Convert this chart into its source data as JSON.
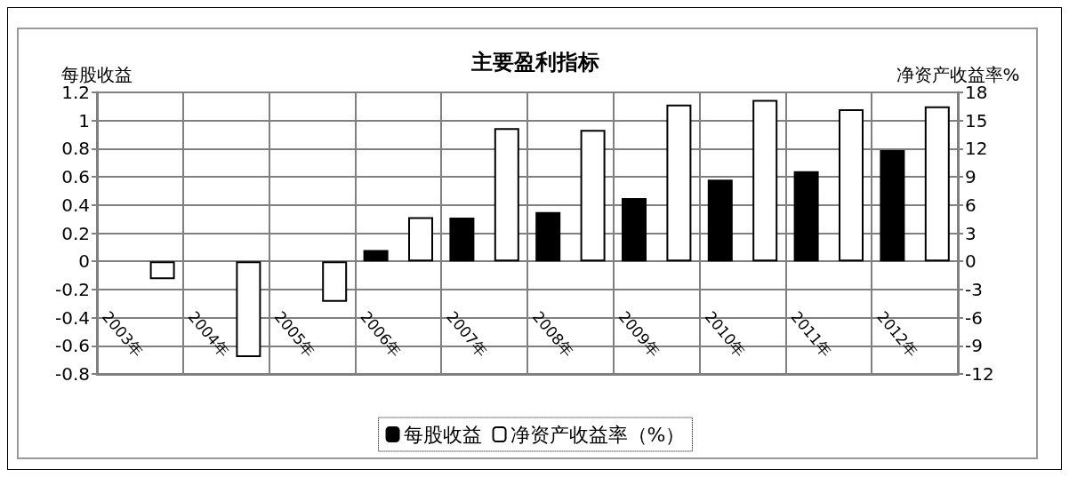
{
  "chart_data": {
    "type": "bar",
    "title": "主要盈利指标",
    "ylabel": "每股收益",
    "y2label": "净资产收益率%",
    "categories": [
      "2003年",
      "2004年",
      "2005年",
      "2006年",
      "2007年",
      "2008年",
      "2009年",
      "2010年",
      "2011年",
      "2012年"
    ],
    "series": [
      {
        "name": "每股收益",
        "color": "#000000",
        "values": [
          null,
          null,
          null,
          0.08,
          0.31,
          0.35,
          0.45,
          0.58,
          0.64,
          0.79
        ]
      },
      {
        "name": "净资产收益率（%）",
        "color": "#ffffff",
        "axis": "y2",
        "values": [
          -1.9,
          -10.2,
          -4.3,
          4.7,
          14.2,
          14.0,
          16.7,
          17.2,
          16.2,
          16.5
        ]
      }
    ],
    "ylim": [
      -0.8,
      1.2
    ],
    "yticks": [
      -0.8,
      -0.6,
      -0.4,
      -0.2,
      0,
      0.2,
      0.4,
      0.6,
      0.8,
      1,
      1.2
    ],
    "y2lim": [
      -12,
      18
    ],
    "y2ticks": [
      -12,
      -9,
      -6,
      -3,
      0,
      3,
      6,
      9,
      12,
      15,
      18
    ],
    "grid": true,
    "legend": "bottom"
  }
}
